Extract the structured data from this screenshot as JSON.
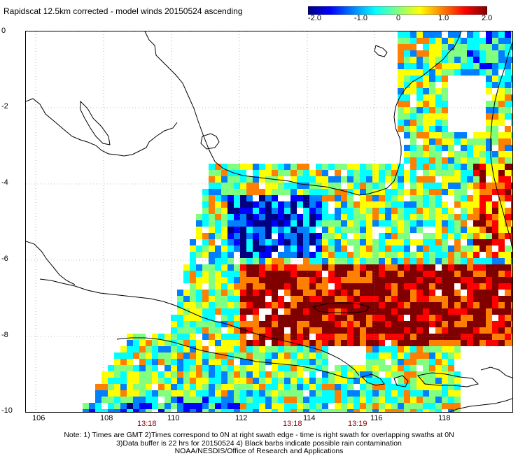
{
  "title": "Rapidscat 12.5km corrected - model winds 20150524 ascending",
  "colorbar": {
    "ticks": [
      "-2.0",
      "-1.0",
      "0",
      "1.0",
      "2.0"
    ],
    "colors": [
      "#000080",
      "#0000ff",
      "#0080ff",
      "#00ffff",
      "#80ff80",
      "#ffff00",
      "#ff8000",
      "#ff0000",
      "#800000"
    ]
  },
  "map": {
    "lat_labels": [
      "0",
      "-2",
      "-4",
      "-6",
      "-8",
      "-10"
    ],
    "lon_labels": [
      "106",
      "108",
      "110",
      "112",
      "114",
      "116",
      "118"
    ],
    "pass_times": [
      "13:18",
      "13:18",
      "13:19"
    ]
  },
  "notes": [
    "Note: 1) Times are GMT 2)Times correspond to 0N at right swath edge - time is right swath for overlapping swaths at 0N",
    "3)Data buffer is 22 hrs for 20150524 4) Black barbs indicate possible rain contamination",
    "NOAA/NESDIS/Office of Research and Applications"
  ]
}
